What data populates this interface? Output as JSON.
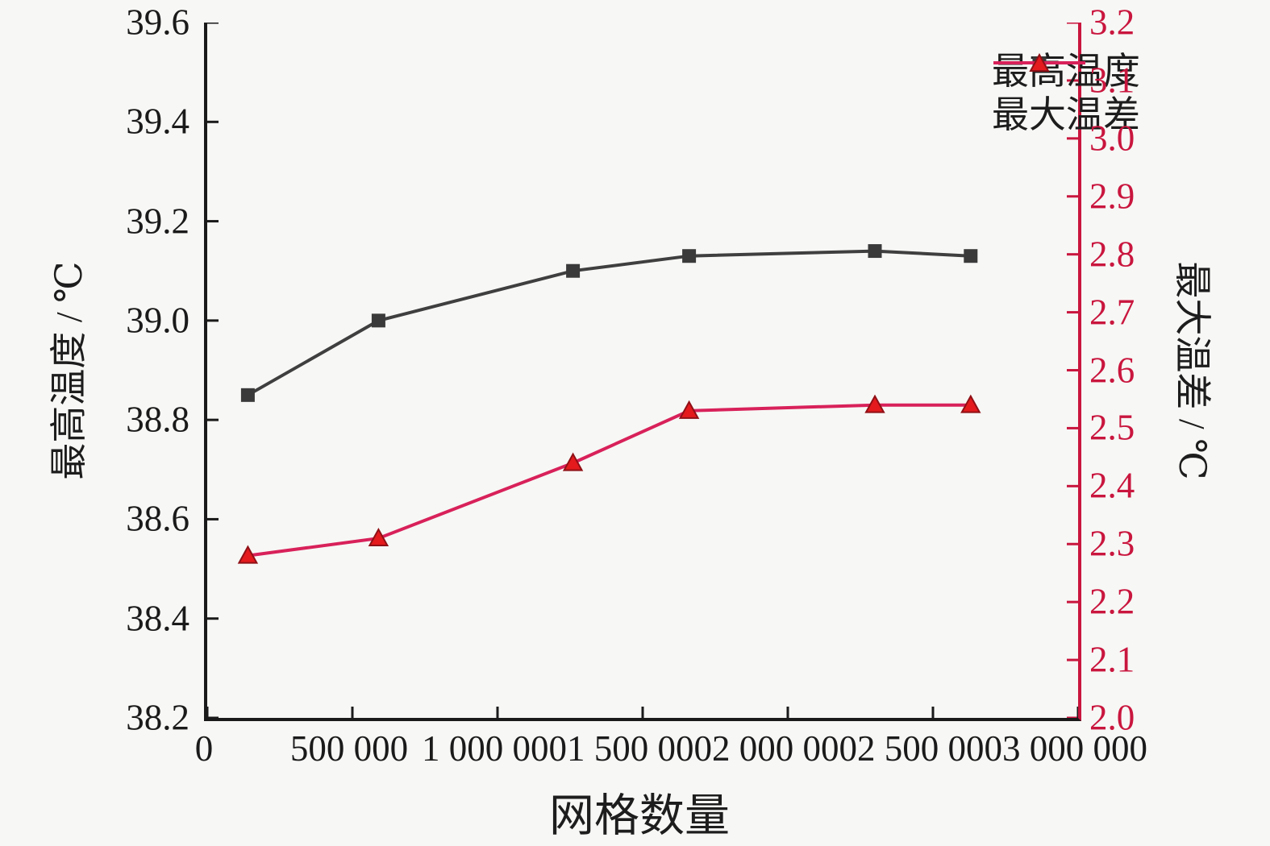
{
  "chart_data": {
    "type": "line",
    "title": "",
    "xlabel": "网格数量",
    "ylabel_left": "最高温度 / ℃",
    "ylabel_right": "最大温差 / ℃",
    "grid": false,
    "background_color": "#f7f7f5",
    "x": [
      140000,
      590000,
      1260000,
      1660000,
      2300000,
      2630000
    ],
    "series": [
      {
        "name": "最高温度",
        "axis": "left",
        "marker": "square",
        "color": "#3f3f3f",
        "marker_color": "#3a3a3a",
        "values": [
          38.85,
          39.0,
          39.1,
          39.13,
          39.14,
          39.13
        ]
      },
      {
        "name": "最大温差",
        "axis": "right",
        "marker": "triangle",
        "color": "#d8215a",
        "marker_color": "#e41a1c",
        "marker_edge_color": "#8f1016",
        "values": [
          2.28,
          2.31,
          2.44,
          2.53,
          2.54,
          2.54
        ]
      }
    ],
    "left_axis": {
      "min": 38.2,
      "max": 39.6,
      "step": 0.2,
      "color": "#1a1a1a",
      "ticks": [
        "38.2",
        "38.4",
        "38.6",
        "38.8",
        "39.0",
        "39.2",
        "39.4",
        "39.6"
      ]
    },
    "right_axis": {
      "min": 2.0,
      "max": 3.2,
      "step": 0.1,
      "color": "#c9163e",
      "ticks": [
        "2.0",
        "2.1",
        "2.2",
        "2.3",
        "2.4",
        "2.5",
        "2.6",
        "2.7",
        "2.8",
        "2.9",
        "3.0",
        "3.1",
        "3.2"
      ]
    },
    "x_axis": {
      "min": 0,
      "max": 3000000,
      "step": 500000,
      "color": "#1a1a1a",
      "ticks": [
        {
          "value": 0,
          "label": "0"
        },
        {
          "value": 500000,
          "label": "500 000"
        },
        {
          "value": 1000000,
          "label": "1 000 000"
        },
        {
          "value": 1500000,
          "label": "1 500 000"
        },
        {
          "value": 2000000,
          "label": "2 000 000"
        },
        {
          "value": 2500000,
          "label": "2 500 000"
        },
        {
          "value": 3000000,
          "label": "3 000 000"
        }
      ]
    },
    "legend": {
      "position": "top-right",
      "frame": false
    }
  }
}
